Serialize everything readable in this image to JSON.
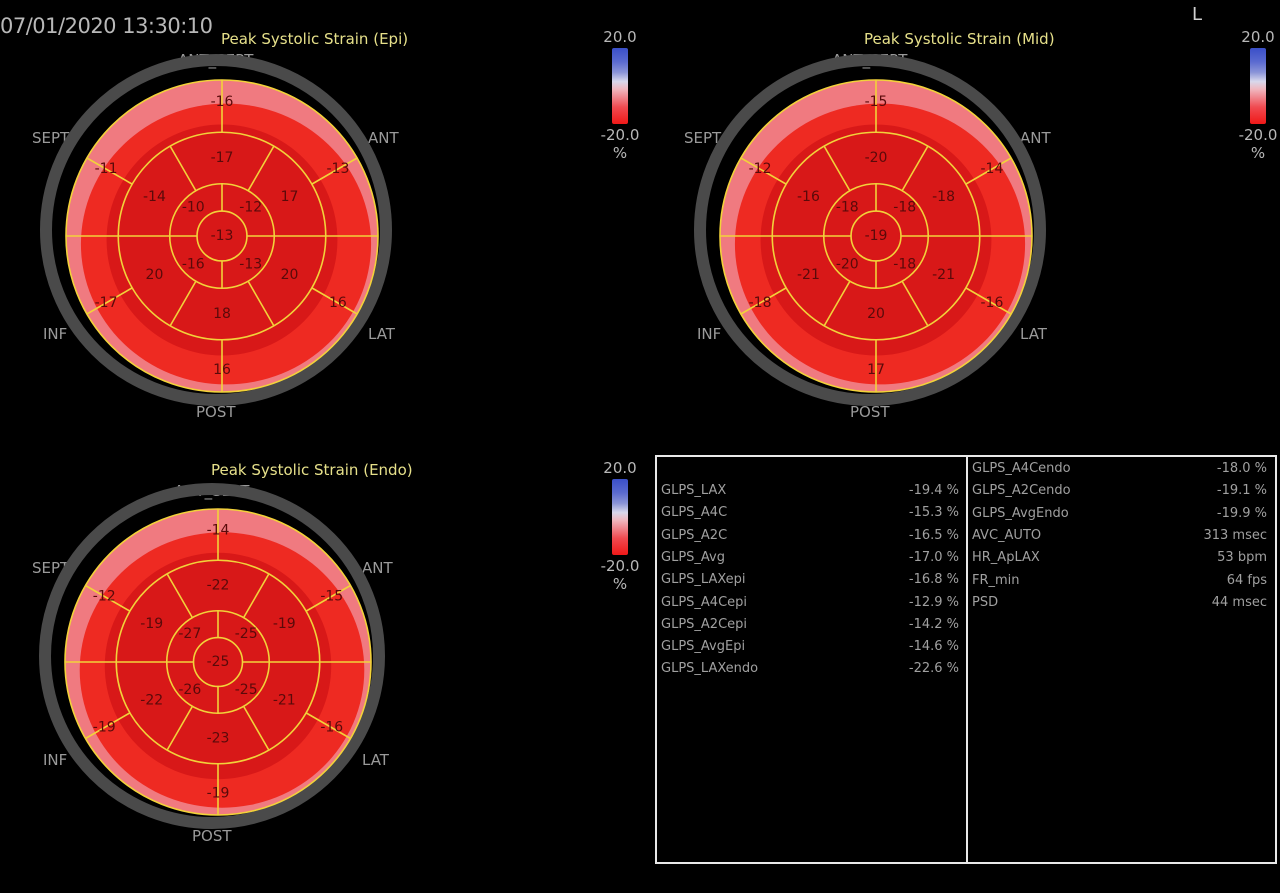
{
  "header": {
    "timestamp": "07/01/2020 13:30:10",
    "orientation_marker": "L"
  },
  "colors": {
    "background": "#000000",
    "segment_lines": "#f2d23a",
    "title_text": "#e6e08a",
    "outer_ring": "#4a4a4a",
    "strain_dark": "#d81818",
    "strain_mid": "#ee2a22",
    "strain_light": "#f07a80"
  },
  "legend": {
    "max": "20.0",
    "min": "-20.0",
    "unit": "%"
  },
  "region_labels": {
    "ant_sept": "ANT_SEPT",
    "ant": "ANT",
    "lat": "LAT",
    "post": "POST",
    "inf": "INF",
    "sept": "SEPT"
  },
  "bullseyes": {
    "epi": {
      "title": "Peak Systolic Strain (Epi)",
      "basal": [
        "-16",
        "-13",
        "16",
        "16",
        "-17",
        "-11"
      ],
      "mid": [
        "-17",
        "17",
        "20",
        "18",
        "20",
        "-14"
      ],
      "apical": [
        "-12",
        "-13",
        "-16",
        "-10"
      ],
      "apex": "-13"
    },
    "mid": {
      "title": "Peak Systolic Strain (Mid)",
      "basal": [
        "-15",
        "-14",
        "-16",
        "17",
        "-18",
        "-12"
      ],
      "mid": [
        "-20",
        "-18",
        "-21",
        "20",
        "-21",
        "-16"
      ],
      "apical": [
        "-18",
        "-18",
        "-20",
        "-18"
      ],
      "apex": "-19"
    },
    "endo": {
      "title": "Peak Systolic Strain (Endo)",
      "basal": [
        "-14",
        "-15",
        "-16",
        "-19",
        "-19",
        "-12"
      ],
      "mid": [
        "-22",
        "-19",
        "-21",
        "-23",
        "-22",
        "-19"
      ],
      "apical": [
        "-25",
        "-25",
        "-26",
        "-27"
      ],
      "apex": "-25"
    }
  },
  "measurements": {
    "left": [
      {
        "label": "GLPS_LAX",
        "value": "-19.4 %"
      },
      {
        "label": "GLPS_A4C",
        "value": "-15.3 %"
      },
      {
        "label": "GLPS_A2C",
        "value": "-16.5 %"
      },
      {
        "label": "GLPS_Avg",
        "value": "-17.0 %"
      },
      {
        "label": "GLPS_LAXepi",
        "value": "-16.8 %"
      },
      {
        "label": "GLPS_A4Cepi",
        "value": "-12.9 %"
      },
      {
        "label": "GLPS_A2Cepi",
        "value": "-14.2 %"
      },
      {
        "label": "GLPS_AvgEpi",
        "value": "-14.6 %"
      },
      {
        "label": "GLPS_LAXendo",
        "value": "-22.6 %"
      }
    ],
    "right": [
      {
        "label": "GLPS_A4Cendo",
        "value": "-18.0 %"
      },
      {
        "label": "GLPS_A2Cendo",
        "value": "-19.1 %"
      },
      {
        "label": "GLPS_AvgEndo",
        "value": "-19.9 %"
      },
      {
        "label": "AVC_AUTO",
        "value": "313 msec"
      },
      {
        "label": "HR_ApLAX",
        "value": "53 bpm"
      },
      {
        "label": "FR_min",
        "value": "64 fps"
      },
      {
        "label": "PSD",
        "value": "44 msec"
      }
    ]
  }
}
